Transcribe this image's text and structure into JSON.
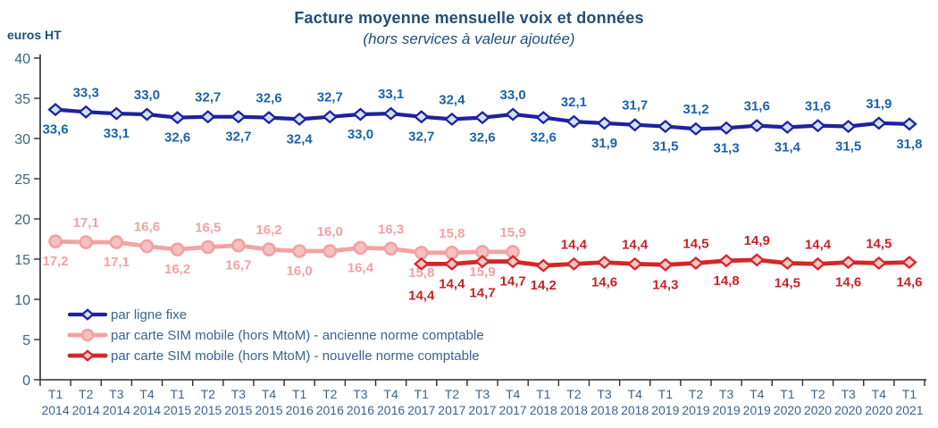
{
  "chart_data": {
    "type": "line",
    "title": "Facture moyenne mensuelle voix et données",
    "subtitle": "(hors services à valeur ajoutée)",
    "ylabel": "euros HT",
    "ylim": [
      0,
      40
    ],
    "yticks": [
      0,
      5,
      10,
      15,
      20,
      25,
      30,
      35,
      40
    ],
    "grid": false,
    "legend_position": "inside-bottom-left",
    "x_quarters": [
      "T1",
      "T2",
      "T3",
      "T4",
      "T1",
      "T2",
      "T3",
      "T4",
      "T1",
      "T2",
      "T3",
      "T4",
      "T1",
      "T2",
      "T3",
      "T4",
      "T1",
      "T2",
      "T3",
      "T4",
      "T1",
      "T2",
      "T3",
      "T4",
      "T1",
      "T2",
      "T3",
      "T4",
      "T1"
    ],
    "x_years": [
      "2014",
      "2014",
      "2014",
      "2014",
      "2015",
      "2015",
      "2015",
      "2015",
      "2016",
      "2016",
      "2016",
      "2016",
      "2017",
      "2017",
      "2017",
      "2017",
      "2018",
      "2018",
      "2018",
      "2018",
      "2019",
      "2019",
      "2019",
      "2019",
      "2020",
      "2020",
      "2020",
      "2020",
      "2021"
    ],
    "colors": {
      "title_text": "#1F4E79",
      "axis_text": "#3A648E",
      "legend_text": "#3A648E",
      "axis_line": "#2B2B33"
    },
    "series": [
      {
        "name": "par ligne fixe",
        "marker": "diamond",
        "color": "#21219E",
        "marker_fill": "#CFE3F7",
        "label_color": "#1E62A8",
        "start_index": 0,
        "values": [
          33.6,
          33.3,
          33.1,
          33.0,
          32.6,
          32.7,
          32.7,
          32.6,
          32.4,
          32.7,
          33.0,
          33.1,
          32.7,
          32.4,
          32.6,
          33.0,
          32.6,
          32.1,
          31.9,
          31.7,
          31.5,
          31.2,
          31.3,
          31.6,
          31.4,
          31.6,
          31.5,
          31.9,
          31.8
        ],
        "label_sides": [
          "below",
          "above",
          "below",
          "above",
          "below",
          "above",
          "below",
          "above",
          "below",
          "above",
          "below",
          "above",
          "below",
          "above",
          "below",
          "above",
          "below",
          "above",
          "below",
          "above",
          "below",
          "above",
          "below",
          "above",
          "below",
          "above",
          "below",
          "above",
          "below"
        ]
      },
      {
        "name": "par carte SIM mobile (hors MtoM)  - ancienne norme comptable",
        "marker": "circle",
        "color": "#F2A2A2",
        "marker_fill": "#F7C0C0",
        "label_color": "#F2A2A4",
        "start_index": 0,
        "values": [
          17.2,
          17.1,
          17.1,
          16.6,
          16.2,
          16.5,
          16.7,
          16.2,
          16.0,
          16.0,
          16.4,
          16.3,
          15.8,
          15.8,
          15.9,
          15.9
        ],
        "label_sides": [
          "below",
          "above",
          "below",
          "above",
          "below",
          "above",
          "below",
          "above",
          "below",
          "above",
          "below",
          "above",
          "below",
          "above",
          "below",
          "above"
        ]
      },
      {
        "name": "par carte SIM mobile (hors MtoM)  - nouvelle norme comptable",
        "marker": "diamond",
        "color": "#D32727",
        "marker_fill": "#F6C5C5",
        "label_color": "#CB2127",
        "start_index": 12,
        "values": [
          14.4,
          14.4,
          14.7,
          14.7,
          14.2,
          14.4,
          14.6,
          14.4,
          14.3,
          14.5,
          14.8,
          14.9,
          14.5,
          14.4,
          14.6,
          14.5,
          14.6
        ],
        "label_sides": [
          "below-far",
          "below",
          "below-far",
          "below",
          "below",
          "above",
          "below",
          "above",
          "below",
          "above",
          "below",
          "above",
          "below",
          "above",
          "below",
          "above",
          "below"
        ]
      }
    ]
  }
}
